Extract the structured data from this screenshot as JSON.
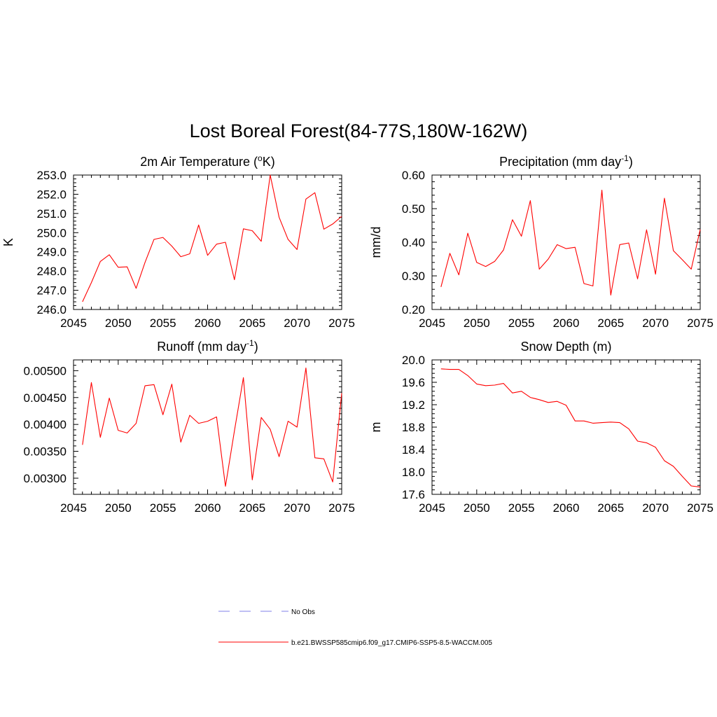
{
  "figure": {
    "title": "Lost Boreal Forest(84-77S,180W-162W)"
  },
  "legend": {
    "items": [
      {
        "label": "No Obs",
        "color": "#9999ee",
        "style": "dashed"
      },
      {
        "label": "b.e21.BWSSP585cmip6.f09_g17.CMIP6-SSP5-8.5-WACCM.005",
        "color": "#ff0000",
        "style": "solid"
      }
    ]
  },
  "chart_data": [
    {
      "type": "line",
      "title": "2m Air Temperature (°K)",
      "title_base": "2m Air Temperature (",
      "title_sup": "o",
      "title_tail": "K)",
      "ylabel": "K",
      "xlim": [
        2045,
        2075
      ],
      "ylim": [
        246.0,
        253.0
      ],
      "xticks": [
        "2045",
        "2050",
        "2055",
        "2060",
        "2065",
        "2070",
        "2075"
      ],
      "yticks": [
        "246.0",
        "247.0",
        "248.0",
        "249.0",
        "250.0",
        "251.0",
        "252.0",
        "253.0"
      ],
      "ytick_values": [
        246,
        247,
        248,
        249,
        250,
        251,
        252,
        253
      ],
      "x": [
        2046,
        2047,
        2048,
        2049,
        2050,
        2051,
        2052,
        2053,
        2054,
        2055,
        2056,
        2057,
        2058,
        2059,
        2060,
        2061,
        2062,
        2063,
        2064,
        2065,
        2066,
        2067,
        2068,
        2069,
        2070,
        2071,
        2072,
        2073,
        2074,
        2075
      ],
      "series": [
        {
          "color": "#ff0000",
          "values": [
            246.4,
            247.4,
            248.5,
            248.85,
            248.2,
            248.22,
            247.1,
            248.45,
            249.65,
            249.75,
            249.3,
            248.75,
            248.9,
            250.4,
            248.82,
            249.4,
            249.5,
            247.55,
            250.2,
            250.1,
            249.55,
            253.0,
            250.8,
            249.65,
            249.12,
            251.75,
            252.08,
            250.18,
            250.45,
            250.85
          ]
        }
      ]
    },
    {
      "type": "line",
      "title": "Precipitation (mm day-1)",
      "title_base": "Precipitation (mm day",
      "title_sup": "-1",
      "title_tail": ")",
      "ylabel": "mm/d",
      "xlim": [
        2045,
        2075
      ],
      "ylim": [
        0.2,
        0.6
      ],
      "xticks": [
        "2045",
        "2050",
        "2055",
        "2060",
        "2065",
        "2070",
        "2075"
      ],
      "yticks": [
        "0.20",
        "0.30",
        "0.40",
        "0.50",
        "0.60"
      ],
      "ytick_values": [
        0.2,
        0.3,
        0.4,
        0.5,
        0.6
      ],
      "x": [
        2046,
        2047,
        2048,
        2049,
        2050,
        2051,
        2052,
        2053,
        2054,
        2055,
        2056,
        2057,
        2058,
        2059,
        2060,
        2061,
        2062,
        2063,
        2064,
        2065,
        2066,
        2067,
        2068,
        2069,
        2070,
        2071,
        2072,
        2073,
        2074,
        2075
      ],
      "series": [
        {
          "color": "#ff0000",
          "values": [
            0.267,
            0.367,
            0.303,
            0.427,
            0.34,
            0.328,
            0.343,
            0.377,
            0.467,
            0.418,
            0.524,
            0.32,
            0.35,
            0.393,
            0.381,
            0.385,
            0.277,
            0.27,
            0.555,
            0.243,
            0.393,
            0.398,
            0.291,
            0.437,
            0.305,
            0.531,
            0.375,
            0.348,
            0.32,
            0.438
          ]
        }
      ]
    },
    {
      "type": "line",
      "title": "Runoff (mm day-1)",
      "title_base": "Runoff (mm day",
      "title_sup": "-1",
      "title_tail": ")",
      "ylabel": "",
      "xlim": [
        2045,
        2075
      ],
      "ylim": [
        0.0027,
        0.0052
      ],
      "xticks": [
        "2045",
        "2050",
        "2055",
        "2060",
        "2065",
        "2070",
        "2075"
      ],
      "yticks": [
        "0.00300",
        "0.00350",
        "0.00400",
        "0.00450",
        "0.00500"
      ],
      "ytick_values": [
        0.003,
        0.0035,
        0.004,
        0.0045,
        0.005
      ],
      "x": [
        2046,
        2047,
        2048,
        2049,
        2050,
        2051,
        2052,
        2053,
        2054,
        2055,
        2056,
        2057,
        2058,
        2059,
        2060,
        2061,
        2062,
        2063,
        2064,
        2065,
        2066,
        2067,
        2068,
        2069,
        2070,
        2071,
        2072,
        2073,
        2074,
        2075
      ],
      "series": [
        {
          "color": "#ff0000",
          "values": [
            0.00362,
            0.00478,
            0.00376,
            0.00449,
            0.00389,
            0.00384,
            0.00402,
            0.00472,
            0.00474,
            0.00418,
            0.00475,
            0.00367,
            0.00417,
            0.00402,
            0.00406,
            0.00414,
            0.00285,
            0.00388,
            0.00487,
            0.00297,
            0.00413,
            0.00391,
            0.0034,
            0.00406,
            0.00395,
            0.00505,
            0.00338,
            0.00336,
            0.00293,
            0.00458
          ]
        }
      ]
    },
    {
      "type": "line",
      "title": "Snow Depth (m)",
      "title_base": "Snow Depth (m)",
      "title_sup": "",
      "title_tail": "",
      "ylabel": "m",
      "xlim": [
        2045,
        2075
      ],
      "ylim": [
        17.6,
        20.0
      ],
      "xticks": [
        "2045",
        "2050",
        "2055",
        "2060",
        "2065",
        "2070",
        "2075"
      ],
      "yticks": [
        "17.6",
        "18.0",
        "18.4",
        "18.8",
        "19.2",
        "19.6",
        "20.0"
      ],
      "ytick_values": [
        17.6,
        18.0,
        18.4,
        18.8,
        19.2,
        19.6,
        20.0
      ],
      "x": [
        2046,
        2047,
        2048,
        2049,
        2050,
        2051,
        2052,
        2053,
        2054,
        2055,
        2056,
        2057,
        2058,
        2059,
        2060,
        2061,
        2062,
        2063,
        2064,
        2065,
        2066,
        2067,
        2068,
        2069,
        2070,
        2071,
        2072,
        2073,
        2074,
        2075
      ],
      "series": [
        {
          "color": "#ff0000",
          "values": [
            19.84,
            19.83,
            19.83,
            19.72,
            19.57,
            19.54,
            19.55,
            19.58,
            19.41,
            19.44,
            19.33,
            19.29,
            19.24,
            19.26,
            19.19,
            18.91,
            18.91,
            18.87,
            18.88,
            18.89,
            18.88,
            18.77,
            18.55,
            18.52,
            18.44,
            18.2,
            18.1,
            17.92,
            17.75,
            17.73
          ]
        }
      ]
    }
  ]
}
